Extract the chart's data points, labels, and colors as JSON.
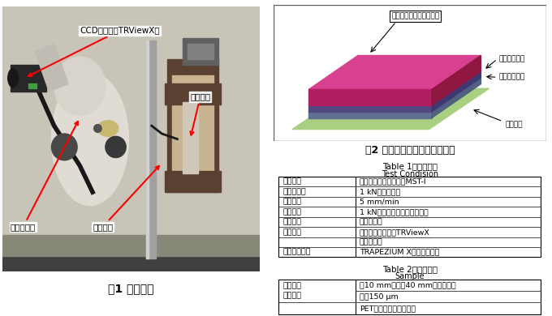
{
  "fig1_caption": "図1 試験装置",
  "fig2_caption": "図2 サンプル構造のイメージ図",
  "table1_title_en": "Table 1",
  "table1_title_jp": "試験条件",
  "table1_subtitle": "Test Condision",
  "table2_title_en": "Table 2",
  "table2_title_jp": "サンプル",
  "table2_subtitle": "Sample",
  "table1_rows": [
    [
      "使用装置",
      "マイクロオートグラフMST-I"
    ],
    [
      "試験力測定",
      "1 kNロードセル"
    ],
    [
      "試験速度",
      "5 mm/min"
    ],
    [
      "つかみ具",
      "1 kN用ねじ式平面形つかみ具"
    ],
    [
      "つかみ歯",
      "やすり目歯"
    ],
    [
      "動画観察",
      "非接触式伸び幅計TRViewX"
    ],
    [
      "",
      "実体顕微鏡"
    ],
    [
      "ソフトウェア",
      "TRAPEZIUM X（シングル）"
    ]
  ],
  "table2_rows": [
    [
      "サンプル\n（寸法）",
      "幅10 mm　長さ40 mm（短冊状）\n厚さ150 μm"
    ],
    [
      "",
      "PET系自己修復フィルム"
    ]
  ],
  "photo_bg_color": "#b8b4a8",
  "photo_wall_color": "#c8c4b8",
  "layer_labels": [
    "自己修復コーティング膜",
    "基材フィルム",
    "吸着フィルム",
    "液晶画面"
  ],
  "coating_color_top": "#d4609a",
  "coating_color_front": "#b84080",
  "coating_color_right": "#903060",
  "base_film_color_top": "#8060a0",
  "base_film_color_front": "#604080",
  "base_film_color_right": "#503070",
  "adhesive_color_top": "#7080a0",
  "adhesive_color_front": "#506080",
  "adhesive_color_right": "#405070",
  "green_base_color": "#a8d080",
  "green_base_dark": "#80a860",
  "bg_color": "#ffffff",
  "border_color": "#404040"
}
